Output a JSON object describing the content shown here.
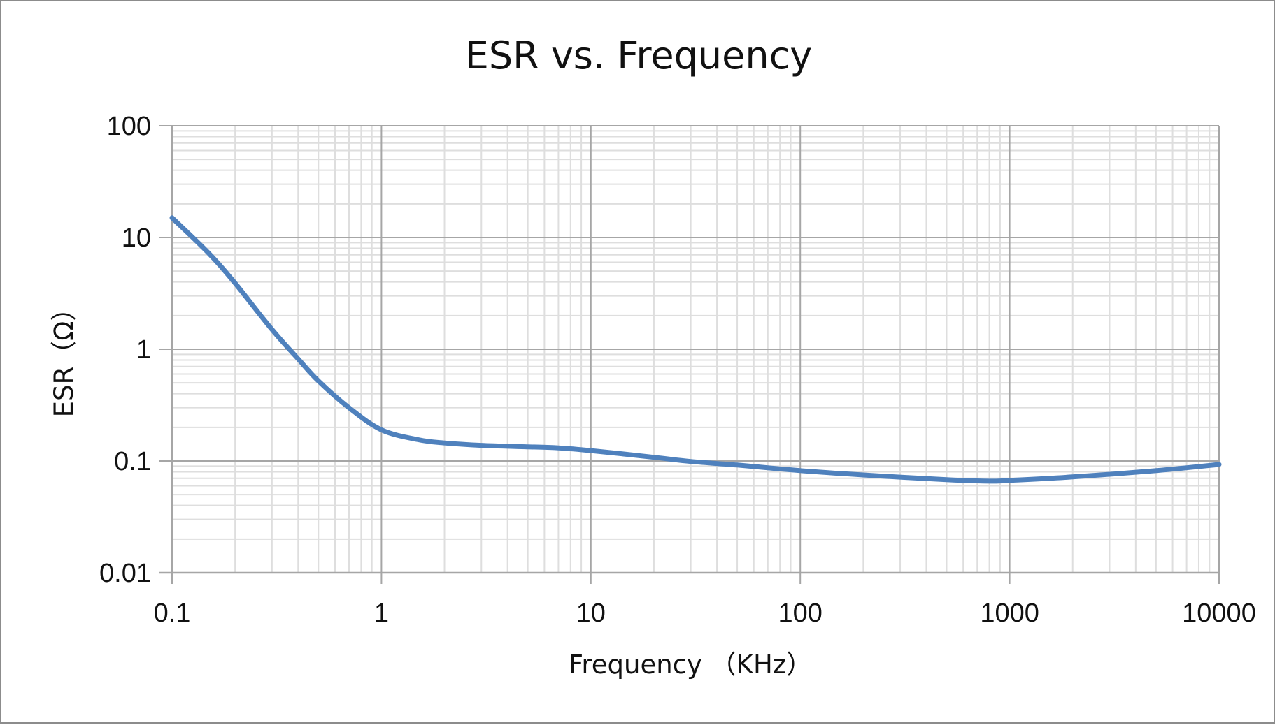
{
  "chart_data": {
    "type": "line",
    "title": "ESR vs. Frequency",
    "xlabel": "Frequency （KHz）",
    "ylabel": "ESR（Ω）",
    "x_scale": "log",
    "y_scale": "log",
    "xlim": [
      0.1,
      10000
    ],
    "ylim": [
      0.01,
      100
    ],
    "x_ticks": [
      "0.1",
      "1",
      "10",
      "100",
      "1000",
      "10000"
    ],
    "y_ticks": [
      "100",
      "10",
      "1",
      "0.1",
      "0.01"
    ],
    "grid": true,
    "legend": "none",
    "series": [
      {
        "color": "#4f81bd",
        "x": [
          0.1,
          0.15,
          0.2,
          0.3,
          0.4,
          0.5,
          0.7,
          1,
          1.5,
          2,
          3,
          5,
          7,
          10,
          20,
          30,
          50,
          100,
          200,
          500,
          800,
          1000,
          2000,
          5000,
          10000
        ],
        "y": [
          15,
          7.2,
          3.9,
          1.5,
          0.82,
          0.52,
          0.3,
          0.19,
          0.155,
          0.145,
          0.138,
          0.134,
          0.131,
          0.124,
          0.108,
          0.099,
          0.092,
          0.082,
          0.075,
          0.068,
          0.066,
          0.067,
          0.072,
          0.082,
          0.093
        ]
      }
    ]
  }
}
